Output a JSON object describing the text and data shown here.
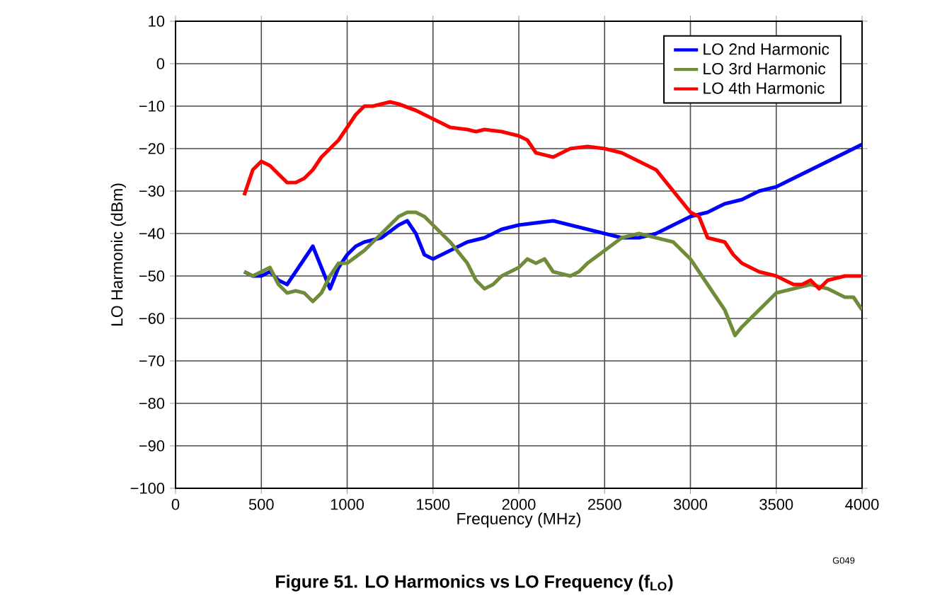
{
  "chart_data": {
    "type": "line",
    "title": "**Figure 51. LO Harmonics vs LO Frequency (f$_{LO}$)**",
    "xlabel": "Frequency (MHz)",
    "ylabel": "LO Harmonic (dBm)",
    "annotations": [
      "G049"
    ],
    "xlim": [
      0,
      4000
    ],
    "ylim": [
      -100,
      10
    ],
    "xticks": [
      0,
      500,
      1000,
      1500,
      2000,
      2500,
      3000,
      3500,
      4000
    ],
    "yticks": [
      {
        "value": -100,
        "label": "−100"
      },
      {
        "value": -90,
        "label": "−90"
      },
      {
        "value": -80,
        "label": "−80"
      },
      {
        "value": -70,
        "label": "−70"
      },
      {
        "value": -60,
        "label": "−60"
      },
      {
        "value": -50,
        "label": "−50"
      },
      {
        "value": -40,
        "label": "−40"
      },
      {
        "value": -30,
        "label": "−30"
      },
      {
        "value": -20,
        "label": "−20"
      },
      {
        "value": -10,
        "label": "−10"
      },
      0,
      10
    ],
    "grid": true,
    "legend": "top right",
    "line_style": "solid",
    "marker": "none",
    "series": [
      {
        "name": "LO 2nd Harmonic",
        "color": "#0000ff",
        "x": [
          400,
          450,
          500,
          550,
          600,
          650,
          700,
          750,
          800,
          850,
          900,
          950,
          1000,
          1050,
          1100,
          1200,
          1300,
          1350,
          1400,
          1450,
          1500,
          1550,
          1600,
          1700,
          1800,
          1900,
          2000,
          2100,
          2200,
          2300,
          2400,
          2500,
          2600,
          2700,
          2800,
          2900,
          3000,
          3100,
          3200,
          3300,
          3400,
          3500,
          3600,
          3700,
          3800,
          3900,
          4000
        ],
        "values": [
          -49,
          -50,
          -50,
          -49,
          -51,
          -52,
          -49,
          -46,
          -43,
          -48,
          -53,
          -48,
          -45,
          -43,
          -42,
          -41,
          -38,
          -37,
          -40,
          -45,
          -46,
          -45,
          -44,
          -42,
          -41,
          -39,
          -38,
          -37.5,
          -37,
          -38,
          -39,
          -40,
          -41,
          -41,
          -40,
          -38,
          -36,
          -35,
          -33,
          -32,
          -30,
          -29,
          -27,
          -25,
          -23,
          -21,
          -19
        ]
      },
      {
        "name": "LO 3rd Harmonic",
        "color": "#6f8c3a",
        "x": [
          400,
          450,
          500,
          550,
          600,
          650,
          700,
          750,
          800,
          850,
          900,
          950,
          1000,
          1100,
          1200,
          1300,
          1350,
          1400,
          1450,
          1500,
          1600,
          1700,
          1750,
          1800,
          1850,
          1900,
          2000,
          2050,
          2100,
          2150,
          2200,
          2300,
          2350,
          2400,
          2500,
          2600,
          2700,
          2800,
          2900,
          3000,
          3100,
          3200,
          3260,
          3300,
          3400,
          3500,
          3600,
          3700,
          3800,
          3900,
          3950,
          4000
        ],
        "values": [
          -49,
          -50,
          -49,
          -48,
          -52,
          -54,
          -53.5,
          -54,
          -56,
          -54,
          -50,
          -47,
          -47,
          -44,
          -40,
          -36,
          -35,
          -35,
          -36,
          -38,
          -42,
          -47,
          -51,
          -53,
          -52,
          -50,
          -48,
          -46,
          -47,
          -46,
          -49,
          -50,
          -49,
          -47,
          -44,
          -41,
          -40,
          -41,
          -42,
          -46,
          -52,
          -58,
          -64,
          -62,
          -58,
          -54,
          -53,
          -52,
          -53,
          -55,
          -55,
          -58
        ]
      },
      {
        "name": "LO 4th Harmonic",
        "color": "#ff0000",
        "x": [
          400,
          450,
          500,
          550,
          600,
          650,
          700,
          750,
          800,
          850,
          900,
          950,
          1000,
          1050,
          1100,
          1150,
          1200,
          1250,
          1300,
          1400,
          1500,
          1600,
          1700,
          1750,
          1800,
          1900,
          2000,
          2050,
          2100,
          2200,
          2300,
          2400,
          2500,
          2600,
          2700,
          2800,
          2900,
          3000,
          3050,
          3100,
          3200,
          3250,
          3300,
          3400,
          3500,
          3600,
          3650,
          3700,
          3750,
          3800,
          3900,
          3950,
          4000
        ],
        "values": [
          -31,
          -25,
          -23,
          -24,
          -26,
          -28,
          -28,
          -27,
          -25,
          -22,
          -20,
          -18,
          -15,
          -12,
          -10,
          -10,
          -9.5,
          -9,
          -9.5,
          -11,
          -13,
          -15,
          -15.5,
          -16,
          -15.5,
          -16,
          -17,
          -18,
          -21,
          -22,
          -20,
          -19.5,
          -20,
          -21,
          -23,
          -25,
          -30,
          -35,
          -36,
          -41,
          -42,
          -45,
          -47,
          -49,
          -50,
          -52,
          -52,
          -51,
          -53,
          -51,
          -50,
          -50,
          -50
        ]
      }
    ]
  }
}
